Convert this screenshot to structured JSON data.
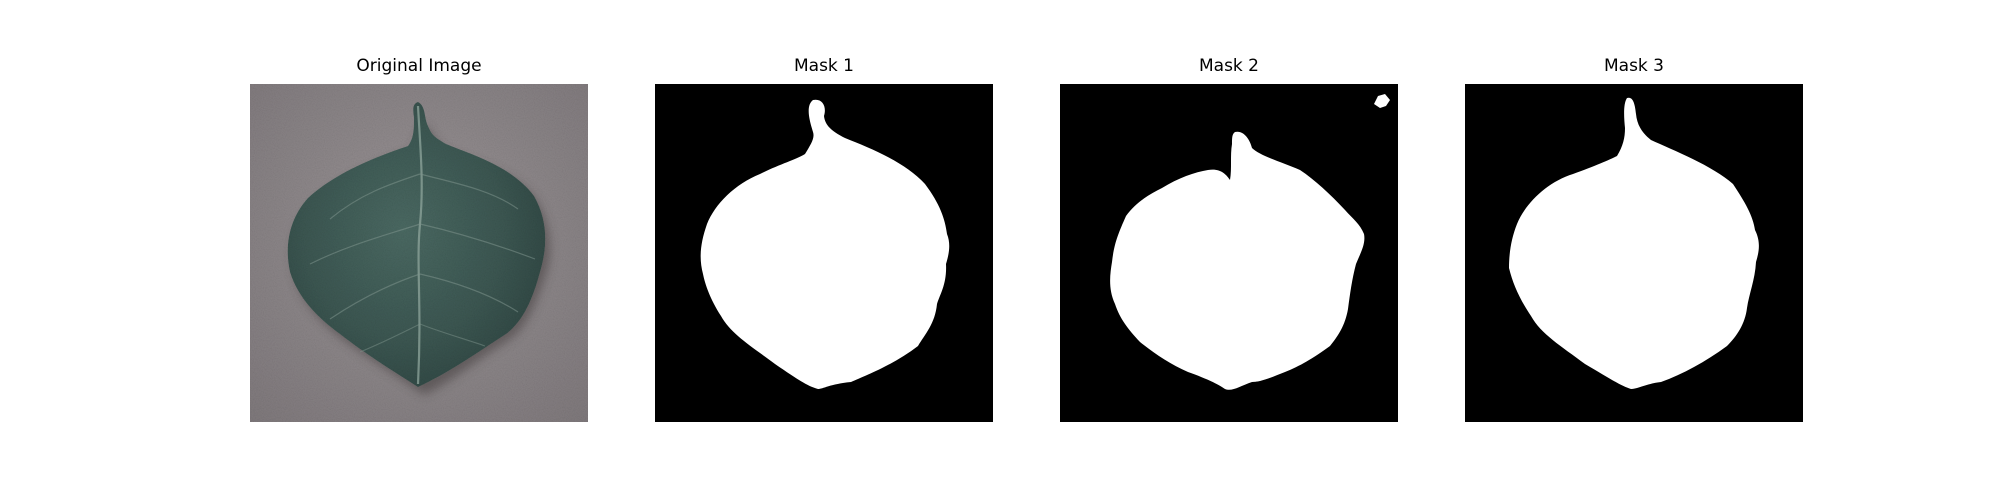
{
  "figure": {
    "panels": [
      {
        "title": "Original Image"
      },
      {
        "title": "Mask 1"
      },
      {
        "title": "Mask 2"
      },
      {
        "title": "Mask 3"
      }
    ]
  },
  "colors": {
    "background": "#ffffff",
    "mask_background": "#000000",
    "mask_foreground": "#ffffff",
    "leaf_base": "#3f5a55",
    "surface": "#8a8587"
  }
}
